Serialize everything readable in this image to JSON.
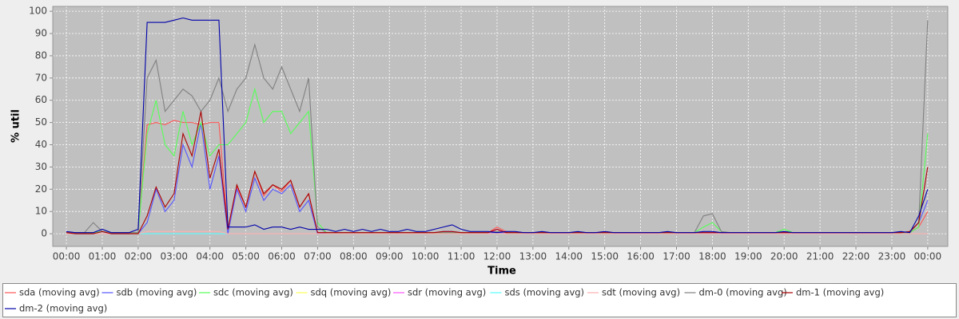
{
  "chart_data": {
    "type": "line",
    "y_label": "% util",
    "x_label": "Time",
    "xlim": [
      -0.38,
      24.56
    ],
    "ylim": [
      -5.7,
      102.2
    ],
    "yticks": [
      0,
      10,
      20,
      30,
      40,
      50,
      60,
      70,
      80,
      90,
      100
    ],
    "xticks": [
      {
        "value": 0,
        "label": "00:00"
      },
      {
        "value": 1,
        "label": "01:00"
      },
      {
        "value": 2,
        "label": "02:00"
      },
      {
        "value": 3,
        "label": "03:00"
      },
      {
        "value": 4,
        "label": "04:00"
      },
      {
        "value": 5,
        "label": "05:00"
      },
      {
        "value": 6,
        "label": "06:00"
      },
      {
        "value": 7,
        "label": "07:00"
      },
      {
        "value": 8,
        "label": "08:00"
      },
      {
        "value": 9,
        "label": "09:00"
      },
      {
        "value": 10,
        "label": "10:00"
      },
      {
        "value": 11,
        "label": "11:00"
      },
      {
        "value": 12,
        "label": "12:00"
      },
      {
        "value": 13,
        "label": "13:00"
      },
      {
        "value": 14,
        "label": "14:00"
      },
      {
        "value": 15,
        "label": "15:00"
      },
      {
        "value": 16,
        "label": "16:00"
      },
      {
        "value": 17,
        "label": "17:00"
      },
      {
        "value": 18,
        "label": "18:00"
      },
      {
        "value": 19,
        "label": "19:00"
      },
      {
        "value": 20,
        "label": "20:00"
      },
      {
        "value": 21,
        "label": "21:00"
      },
      {
        "value": 22,
        "label": "22:00"
      },
      {
        "value": 23,
        "label": "23:00"
      },
      {
        "value": 24,
        "label": "00:00"
      }
    ],
    "grid": true,
    "x": [
      0,
      0.25,
      0.5,
      0.75,
      1,
      1.25,
      1.5,
      1.75,
      2,
      2.25,
      2.5,
      2.75,
      3,
      3.25,
      3.5,
      3.75,
      4,
      4.25,
      4.5,
      4.75,
      5,
      5.25,
      5.5,
      5.75,
      6,
      6.25,
      6.5,
      6.75,
      7,
      7.25,
      7.5,
      7.75,
      8,
      8.25,
      8.5,
      8.75,
      9,
      9.25,
      9.5,
      9.75,
      10,
      10.25,
      10.5,
      10.75,
      11,
      11.25,
      11.5,
      11.75,
      12,
      12.25,
      12.5,
      12.75,
      13,
      13.25,
      13.5,
      13.75,
      14,
      14.25,
      14.5,
      14.75,
      15,
      15.25,
      15.5,
      15.75,
      16,
      16.25,
      16.5,
      16.75,
      17,
      17.25,
      17.5,
      17.75,
      18,
      18.25,
      18.5,
      18.75,
      19,
      19.25,
      19.5,
      19.75,
      20,
      20.25,
      20.5,
      20.75,
      21,
      21.25,
      21.5,
      21.75,
      22,
      22.25,
      22.5,
      22.75,
      23,
      23.25,
      23.5,
      23.75,
      24
    ],
    "series": [
      {
        "name": "sda (moving avg)",
        "color": "#ff5555",
        "values": [
          0.5,
          0.3,
          0.3,
          0.3,
          1,
          0.3,
          0.3,
          0.3,
          0.5,
          49,
          50,
          49,
          51,
          50,
          50,
          49,
          50,
          50,
          2,
          21,
          12,
          28,
          17,
          22,
          19,
          24,
          12,
          18,
          0.5,
          0.5,
          0.5,
          0.5,
          0.5,
          0.5,
          0.5,
          0.5,
          0.5,
          0.5,
          0.5,
          0.5,
          0.5,
          0.5,
          0.5,
          0.5,
          0.5,
          0.5,
          0.5,
          0.5,
          3,
          1,
          0.5,
          0.5,
          0.5,
          0.5,
          0.5,
          0.5,
          0.5,
          0.5,
          0.5,
          0.5,
          1,
          0.5,
          0.5,
          0.5,
          0.5,
          0.5,
          0.5,
          0.5,
          0.5,
          0.5,
          0.5,
          0.5,
          0.5,
          0.5,
          0.5,
          0.5,
          0.5,
          0.5,
          0.5,
          0.5,
          0.5,
          0.5,
          0.5,
          0.5,
          0.5,
          0.5,
          0.5,
          0.5,
          0.5,
          0.5,
          0.5,
          0.5,
          0.5,
          0.5,
          0.5,
          3,
          10
        ]
      },
      {
        "name": "sdb (moving avg)",
        "color": "#5555ff",
        "values": [
          0.5,
          0,
          0,
          0,
          1,
          0,
          0,
          0,
          0,
          5,
          20,
          10,
          15,
          40,
          30,
          50,
          20,
          35,
          0,
          20,
          10,
          25,
          15,
          20,
          18,
          22,
          10,
          15,
          0,
          0.5,
          0.5,
          0.5,
          0.5,
          0.5,
          0.5,
          0.5,
          0.5,
          0.5,
          0.5,
          0.5,
          0.5,
          0.5,
          1,
          1,
          0.5,
          0.5,
          0.5,
          0.5,
          0.5,
          0.5,
          0.5,
          0.5,
          0.5,
          0.5,
          0.5,
          0.5,
          0.5,
          0.5,
          0.5,
          0.5,
          0.5,
          0.5,
          0.5,
          0.5,
          0.5,
          0.5,
          0.5,
          0.5,
          0.5,
          0.5,
          0.5,
          0.5,
          0.5,
          0.5,
          0.5,
          0.5,
          0.5,
          0.5,
          0.5,
          0.5,
          0.5,
          0.5,
          0.5,
          0.5,
          0.5,
          0.5,
          0.5,
          0.5,
          0.5,
          0.5,
          0.5,
          0.5,
          0.5,
          0.5,
          1,
          5,
          15
        ]
      },
      {
        "name": "sdc (moving avg)",
        "color": "#55ff55",
        "values": [
          0.5,
          0.5,
          0.5,
          0.5,
          1,
          0.5,
          0.5,
          0.5,
          0.5,
          45,
          60,
          40,
          35,
          55,
          40,
          50,
          35,
          40,
          40,
          45,
          50,
          65,
          50,
          55,
          55,
          45,
          50,
          55,
          5,
          0.5,
          0.5,
          0.5,
          0.5,
          0.5,
          0.5,
          0.5,
          0.5,
          0.5,
          0.5,
          0.5,
          0.5,
          0.5,
          0.5,
          0.5,
          0.5,
          0.5,
          0.5,
          0.5,
          1,
          0.5,
          0.5,
          0.5,
          0.5,
          0.5,
          0.5,
          0.5,
          0.5,
          0.5,
          0.5,
          0.5,
          0.5,
          0.5,
          0.5,
          0.5,
          0.5,
          0.5,
          0.5,
          0.5,
          0.5,
          0.5,
          0.5,
          3,
          5,
          1,
          0.5,
          0.5,
          0.5,
          0.5,
          0.5,
          0.5,
          2,
          0.5,
          0.5,
          0.5,
          0.5,
          0.5,
          0.5,
          0.5,
          0.5,
          0.5,
          0.5,
          0.5,
          0.5,
          0.5,
          0.5,
          3,
          45
        ]
      },
      {
        "name": "sdq (moving avg)",
        "color": "#ffff55",
        "values": [
          0,
          0,
          0,
          0,
          0,
          0,
          0,
          0,
          0,
          0,
          0,
          0,
          0,
          0,
          0,
          0,
          0,
          0,
          0,
          0,
          0,
          0,
          0,
          0,
          0,
          0,
          0,
          0,
          0,
          0,
          0,
          0,
          0,
          0,
          0,
          0,
          0,
          0,
          0,
          0,
          0,
          0,
          0,
          0,
          0,
          0,
          0,
          0,
          0,
          0,
          0,
          0,
          0,
          0,
          0,
          0,
          0,
          0,
          0,
          0,
          0,
          0,
          0,
          0,
          0,
          0,
          0,
          0,
          0,
          0,
          0,
          0,
          0,
          0,
          0,
          0,
          0,
          0,
          0,
          0,
          0,
          0,
          0,
          0,
          0,
          0,
          0,
          0,
          0,
          0,
          0,
          0,
          0,
          0,
          0,
          0,
          0
        ]
      },
      {
        "name": "sdr (moving avg)",
        "color": "#ff55ff",
        "values": [
          0,
          0,
          0,
          0,
          0,
          0,
          0,
          0,
          0,
          0,
          0,
          0,
          0,
          0,
          0,
          0,
          0,
          0,
          0,
          0,
          0,
          0,
          0,
          0,
          0,
          0,
          0,
          0,
          0,
          0,
          0,
          0,
          0,
          0,
          0,
          0,
          0,
          0,
          0,
          0,
          0,
          0,
          0,
          0,
          0,
          0,
          0,
          0,
          2,
          0,
          0,
          0,
          0,
          0,
          0,
          0,
          0,
          0,
          0,
          0,
          0,
          0,
          0,
          0,
          0,
          0,
          0,
          0,
          0,
          0,
          0,
          0,
          0,
          0,
          0,
          0,
          0,
          0,
          0,
          0,
          0,
          0,
          0,
          0,
          0,
          0,
          0,
          0,
          0,
          0,
          0,
          0,
          0,
          0,
          0,
          0,
          0
        ]
      },
      {
        "name": "sds (moving avg)",
        "color": "#55ffff",
        "values": [
          0,
          0,
          0,
          0,
          0,
          0,
          0,
          0,
          0,
          0,
          0,
          0,
          0,
          0,
          0,
          0,
          0,
          0,
          0,
          0,
          0,
          0,
          0,
          0,
          0,
          0,
          0,
          0,
          0,
          0,
          0,
          0,
          0,
          0,
          0,
          0,
          0,
          0,
          0,
          0,
          0,
          0,
          0,
          0,
          0,
          0,
          0,
          0,
          0,
          0,
          0,
          0,
          0,
          0,
          0,
          0,
          0,
          0,
          0,
          0,
          0,
          0,
          0,
          0,
          0,
          0,
          0,
          0,
          0,
          0,
          0,
          0,
          0,
          0,
          0,
          0,
          0,
          0,
          0,
          0,
          0,
          0,
          0,
          0,
          0,
          0,
          0,
          0,
          0,
          0,
          0,
          0,
          0,
          0,
          0,
          0,
          0
        ]
      },
      {
        "name": "sdt (moving avg)",
        "color": "#ffafaf",
        "values": [
          0,
          0,
          0,
          0,
          0,
          0,
          0,
          0,
          0,
          1,
          1,
          1,
          1,
          1,
          1,
          1,
          1,
          1,
          0,
          0,
          0,
          0,
          0,
          0,
          0,
          0,
          0,
          0,
          0,
          0,
          0,
          0,
          0,
          0,
          0,
          0,
          0,
          0,
          0,
          0,
          0,
          0,
          0,
          0,
          0,
          0,
          0,
          0,
          0,
          0,
          0,
          0,
          0,
          0,
          0,
          0,
          0,
          0,
          0,
          0,
          0,
          0,
          0,
          0,
          0,
          0,
          0,
          0,
          0,
          0,
          0,
          0,
          0,
          0,
          0,
          0,
          0,
          0,
          0,
          0,
          0,
          0,
          0,
          0,
          0,
          0,
          0,
          0,
          0,
          0,
          0,
          0,
          0,
          0,
          0,
          0,
          0
        ]
      },
      {
        "name": "dm-0 (moving avg)",
        "color": "#808080",
        "values": [
          0.5,
          0.5,
          0.5,
          5,
          1,
          0.5,
          0.5,
          0.5,
          0.5,
          70,
          78,
          55,
          60,
          65,
          62,
          55,
          60,
          70,
          55,
          65,
          70,
          85,
          70,
          65,
          75,
          65,
          55,
          70,
          3,
          0.5,
          0.5,
          0.5,
          0.5,
          0.5,
          0.5,
          0.5,
          0.5,
          0.5,
          0.5,
          0.5,
          0.5,
          0.5,
          0.5,
          0.5,
          0.5,
          0.5,
          0.5,
          0.5,
          1,
          0.5,
          0.5,
          0.5,
          0.5,
          0.5,
          0.5,
          0.5,
          0.5,
          0.5,
          0.5,
          0.5,
          0.5,
          0.5,
          0.5,
          0.5,
          0.5,
          0.5,
          0.5,
          0.5,
          0.5,
          0.5,
          0.5,
          8,
          9,
          1,
          0.5,
          0.5,
          0.5,
          0.5,
          0.5,
          0.5,
          1,
          0.5,
          0.5,
          0.5,
          0.5,
          0.5,
          0.5,
          0.5,
          0.5,
          0.5,
          0.5,
          0.5,
          0.5,
          0.5,
          0.5,
          5,
          96
        ]
      },
      {
        "name": "dm-1 (moving avg)",
        "color": "#aa0000",
        "values": [
          0.5,
          0,
          0,
          0,
          1,
          0,
          0,
          0,
          0,
          8,
          21,
          12,
          18,
          45,
          35,
          55,
          25,
          38,
          2,
          22,
          12,
          28,
          18,
          22,
          20,
          24,
          12,
          18,
          0.5,
          0.5,
          0.5,
          0.5,
          0.5,
          0.5,
          0.5,
          0.5,
          0.5,
          0.5,
          0.5,
          0.5,
          0.5,
          0.5,
          1,
          1,
          0.5,
          0.5,
          0.5,
          0.5,
          2,
          0.5,
          0.5,
          0.5,
          0.5,
          0.5,
          0.5,
          0.5,
          0.5,
          0.5,
          0.5,
          0.5,
          0.5,
          0.5,
          0.5,
          0.5,
          0.5,
          0.5,
          0.5,
          0.5,
          0.5,
          0.5,
          0.5,
          0.5,
          0.5,
          0.5,
          0.5,
          0.5,
          0.5,
          0.5,
          0.5,
          0.5,
          0.5,
          0.5,
          0.5,
          0.5,
          0.5,
          0.5,
          0.5,
          0.5,
          0.5,
          0.5,
          0.5,
          0.5,
          0.5,
          0.5,
          1,
          5,
          30
        ]
      },
      {
        "name": "dm-2 (moving avg)",
        "color": "#0000aa",
        "values": [
          1,
          0.5,
          0.5,
          0.5,
          2,
          0.5,
          0.5,
          0.5,
          2,
          95,
          95,
          95,
          96,
          97,
          96,
          96,
          96,
          96,
          3,
          3,
          3,
          4,
          2,
          3,
          3,
          2,
          3,
          2,
          2,
          2,
          1,
          2,
          1,
          2,
          1,
          2,
          1,
          1,
          2,
          1,
          1,
          2,
          3,
          4,
          2,
          1,
          1,
          1,
          0.5,
          1,
          1,
          0.5,
          0.5,
          1,
          0.5,
          0.5,
          0.5,
          1,
          0.5,
          0.5,
          1,
          0.5,
          0.5,
          0.5,
          0.5,
          0.5,
          0.5,
          1,
          0.5,
          0.5,
          0.5,
          1,
          1,
          0.5,
          0.5,
          0.5,
          0.5,
          0.5,
          0.5,
          0.5,
          1,
          0.5,
          0.5,
          0.5,
          0.5,
          0.5,
          0.5,
          0.5,
          0.5,
          0.5,
          0.5,
          0.5,
          0.5,
          1,
          0.5,
          8,
          20
        ]
      }
    ]
  }
}
